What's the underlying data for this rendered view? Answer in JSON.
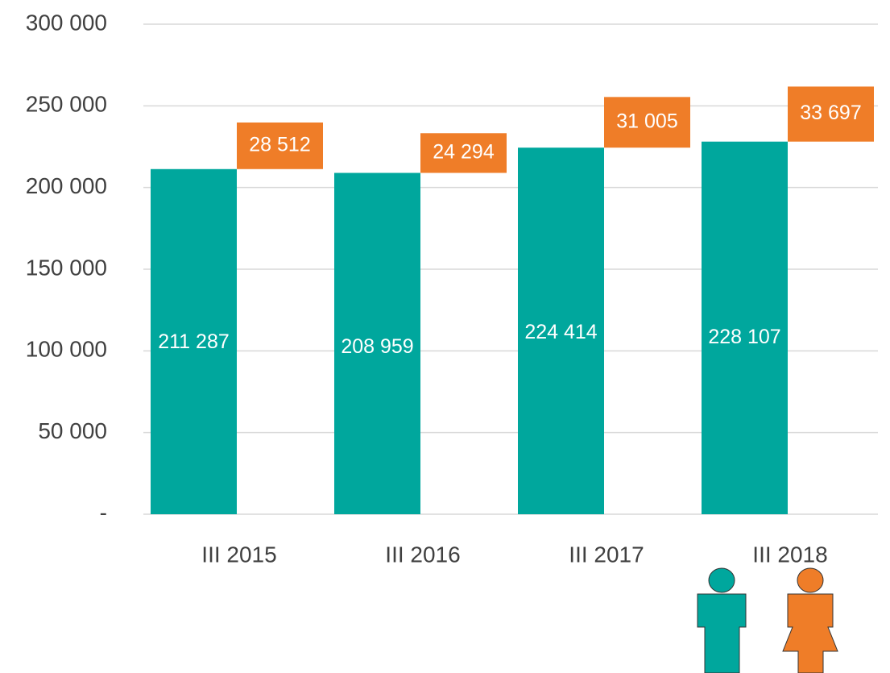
{
  "chart_data": {
    "type": "bar",
    "stacked": true,
    "categories": [
      "III 2015",
      "III 2016",
      "III 2017",
      "III 2018"
    ],
    "series": [
      {
        "color": "#00a79d",
        "values": [
          211287,
          208959,
          224414,
          228107
        ],
        "value_labels": [
          "211 287",
          "208 959",
          "224 414",
          "228 107"
        ]
      },
      {
        "color": "#ef7d28",
        "values": [
          28512,
          24294,
          31005,
          33697
        ],
        "value_labels": [
          "28 512",
          "24 294",
          "31 005",
          "33 697"
        ]
      }
    ],
    "ylim": [
      0,
      300000
    ],
    "yticks": [
      {
        "value": 0,
        "label": "-"
      },
      {
        "value": 50000,
        "label": "50 000"
      },
      {
        "value": 100000,
        "label": "100 000"
      },
      {
        "value": 150000,
        "label": "150 000"
      },
      {
        "value": 200000,
        "label": "200 000"
      },
      {
        "value": 250000,
        "label": "250 000"
      },
      {
        "value": 300000,
        "label": "300 000"
      }
    ],
    "grid": true
  }
}
